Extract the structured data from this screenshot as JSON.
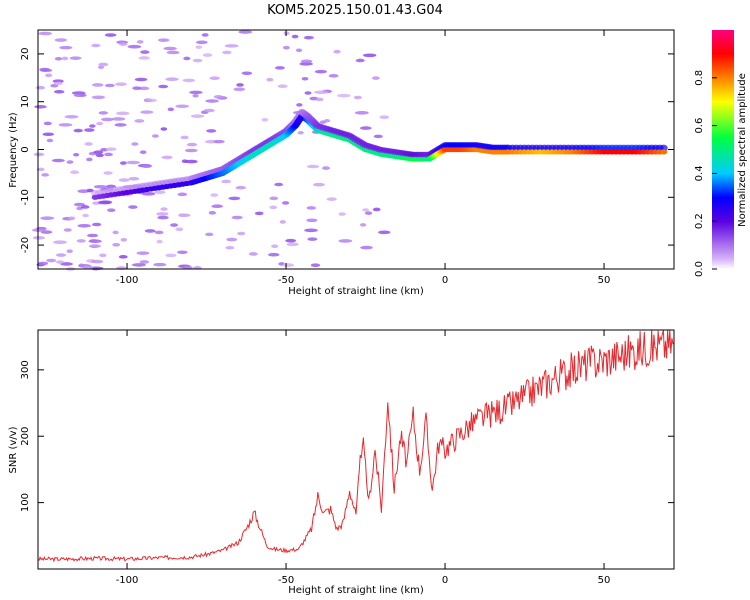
{
  "title": "KOM5.2025.150.01.43.G04",
  "chart_data": [
    {
      "type": "heatmap",
      "xlabel": "Height of straight line (km)",
      "ylabel": "Frequency (Hz)",
      "xlim": [
        -128,
        72
      ],
      "ylim": [
        -25,
        25
      ],
      "xticks": [
        -100,
        -50,
        0,
        50
      ],
      "yticks": [
        -20,
        -10,
        0,
        10,
        20
      ],
      "colorbar": {
        "label": "Normalized spectral amplitude",
        "range": [
          0,
          1
        ],
        "ticks": [
          0.0,
          0.2,
          0.4,
          0.6,
          0.8
        ]
      },
      "ridge": {
        "x": [
          -110,
          -100,
          -90,
          -80,
          -75,
          -70,
          -65,
          -60,
          -55,
          -50,
          -47,
          -45,
          -43,
          -40,
          -35,
          -30,
          -25,
          -20,
          -15,
          -10,
          -5,
          0,
          5,
          10,
          15,
          20,
          30,
          40,
          50,
          60,
          70
        ],
        "y": [
          -10,
          -9,
          -8,
          -7,
          -6,
          -5,
          -3,
          -1,
          1,
          3,
          5,
          7,
          6,
          4,
          3,
          2,
          0,
          -1,
          -1.5,
          -2,
          -2,
          0,
          0,
          0,
          -0.5,
          -0.5,
          -0.5,
          -0.5,
          -0.5,
          -0.5,
          -0.5
        ],
        "amplitude": [
          0.15,
          0.2,
          0.25,
          0.25,
          0.3,
          0.35,
          0.4,
          0.45,
          0.45,
          0.4,
          0.3,
          0.25,
          0.35,
          0.45,
          0.5,
          0.5,
          0.5,
          0.5,
          0.5,
          0.55,
          0.5,
          0.85,
          0.85,
          0.8,
          0.8,
          0.8,
          0.75,
          0.8,
          0.9,
          0.9,
          0.8
        ]
      }
    },
    {
      "type": "line",
      "xlabel": "Height of straight line (km)",
      "ylabel": "SNR (v/v)",
      "xlim": [
        -128,
        72
      ],
      "ylim": [
        0,
        360
      ],
      "xticks": [
        -100,
        -50,
        0,
        50
      ],
      "yticks": [
        100,
        200,
        300
      ],
      "series": [
        {
          "color": "#e8282d",
          "x": [
            -128,
            -120,
            -110,
            -100,
            -90,
            -80,
            -75,
            -70,
            -65,
            -62,
            -60,
            -58,
            -56,
            -54,
            -50,
            -46,
            -42,
            -40,
            -38,
            -36,
            -34,
            -32,
            -30,
            -28,
            -26,
            -24,
            -22,
            -20,
            -18,
            -16,
            -14,
            -12,
            -10,
            -8,
            -6,
            -4,
            -2,
            0,
            5,
            10,
            15,
            20,
            25,
            30,
            35,
            40,
            45,
            50,
            55,
            60,
            65,
            72
          ],
          "y": [
            15,
            15,
            16,
            15,
            17,
            18,
            22,
            28,
            40,
            65,
            85,
            60,
            35,
            30,
            28,
            30,
            60,
            110,
            85,
            90,
            60,
            70,
            120,
            80,
            200,
            100,
            180,
            90,
            260,
            120,
            200,
            160,
            230,
            150,
            220,
            120,
            190,
            180,
            205,
            225,
            235,
            245,
            260,
            275,
            290,
            300,
            310,
            315,
            322,
            330,
            335,
            340
          ]
        }
      ]
    }
  ]
}
